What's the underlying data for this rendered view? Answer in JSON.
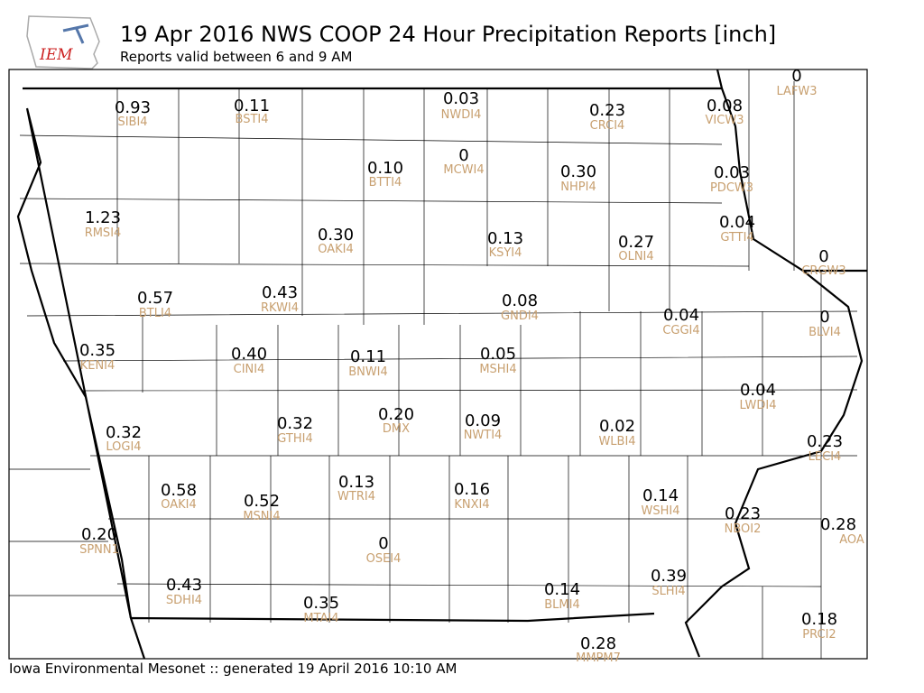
{
  "title": "19 Apr 2016 NWS COOP 24 Hour Precipitation Reports [inch]",
  "subtitle": "Reports valid between 6 and 9 AM",
  "logo": "IEM",
  "footer": "Iowa Environmental Mesonet :: generated 19 April 2016 10:10 AM",
  "stations": [
    {
      "value": "0.93",
      "id": "SIBI4"
    },
    {
      "value": "0.11",
      "id": "BSTI4"
    },
    {
      "value": "0.03",
      "id": "NWDI4"
    },
    {
      "value": "0.23",
      "id": "CRCI4"
    },
    {
      "value": "0.08",
      "id": "VICW3"
    },
    {
      "value": "0",
      "id": "LAFW3"
    },
    {
      "value": "0.10",
      "id": "BTTI4"
    },
    {
      "value": "0",
      "id": "MCWI4"
    },
    {
      "value": "0.30",
      "id": "NHPI4"
    },
    {
      "value": "0.03",
      "id": "PDCW3"
    },
    {
      "value": "1.23",
      "id": "RMSI4"
    },
    {
      "value": "0.30",
      "id": "OAKI4"
    },
    {
      "value": "0.13",
      "id": "KSYI4"
    },
    {
      "value": "0.27",
      "id": "OLNI4"
    },
    {
      "value": "0.04",
      "id": "GTTI4"
    },
    {
      "value": "0",
      "id": "CRGW3"
    },
    {
      "value": "0.57",
      "id": "BTLI4"
    },
    {
      "value": "0.43",
      "id": "RKWI4"
    },
    {
      "value": "0.08",
      "id": "GNDI4"
    },
    {
      "value": "0.04",
      "id": "CGGI4"
    },
    {
      "value": "0",
      "id": "BLVI4"
    },
    {
      "value": "0.35",
      "id": "KENI4"
    },
    {
      "value": "0.40",
      "id": "CINI4"
    },
    {
      "value": "0.11",
      "id": "BNWI4"
    },
    {
      "value": "0.05",
      "id": "MSHI4"
    },
    {
      "value": "0.04",
      "id": "LWDI4"
    },
    {
      "value": "0.32",
      "id": "LOGI4"
    },
    {
      "value": "0.32",
      "id": "GTHI4"
    },
    {
      "value": "0.20",
      "id": "DMX"
    },
    {
      "value": "0.09",
      "id": "NWTI4"
    },
    {
      "value": "0.02",
      "id": "WLBI4"
    },
    {
      "value": "0.23",
      "id": "LECI4"
    },
    {
      "value": "0.58",
      "id": "OAKI4"
    },
    {
      "value": "0.52",
      "id": "MSNI4"
    },
    {
      "value": "0.13",
      "id": "WTRI4"
    },
    {
      "value": "0.16",
      "id": "KNXI4"
    },
    {
      "value": "0.14",
      "id": "WSHI4"
    },
    {
      "value": "0.23",
      "id": "NBOI2"
    },
    {
      "value": "0.28",
      "id": "AOA"
    },
    {
      "value": "0.20",
      "id": "SPNN1"
    },
    {
      "value": "0",
      "id": "OSEI4"
    },
    {
      "value": "0.43",
      "id": "SDHI4"
    },
    {
      "value": "0.14",
      "id": "BLMI4"
    },
    {
      "value": "0.39",
      "id": "SLHI4"
    },
    {
      "value": "0.35",
      "id": "MTAI4"
    },
    {
      "value": "0.28",
      "id": "MMPM7"
    },
    {
      "value": "0.18",
      "id": "PRCI2"
    }
  ]
}
